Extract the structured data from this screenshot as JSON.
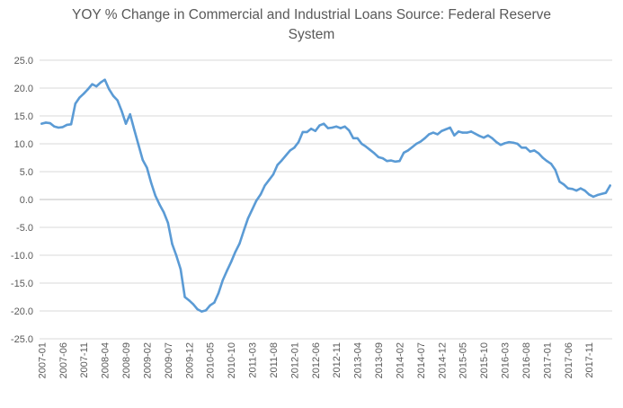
{
  "chart_data": {
    "type": "line",
    "title": "YOY % Change in Commercial and Industrial Loans Source: Federal Reserve System",
    "xlabel": "",
    "ylabel": "",
    "ylim": [
      -25,
      25
    ],
    "yticks": [
      25,
      20,
      15,
      10,
      5,
      0,
      -5,
      -10,
      -15,
      -20,
      -25
    ],
    "ytick_labels": [
      "25.0",
      "20.0",
      "15.0",
      "10.0",
      "5.0",
      "0.0",
      "-5.0",
      "-10.0",
      "-15.0",
      "-20.0",
      "-25.0"
    ],
    "xtick_labels": [
      "2007-01",
      "2007-06",
      "2007-11",
      "2008-04",
      "2008-09",
      "2009-02",
      "2009-07",
      "2009-12",
      "2010-05",
      "2010-10",
      "2011-03",
      "2011-08",
      "2012-01",
      "2012-06",
      "2012-11",
      "2013-04",
      "2013-09",
      "2014-02",
      "2014-07",
      "2014-12",
      "2015-05",
      "2015-10",
      "2016-03",
      "2016-08",
      "2017-01",
      "2017-06",
      "2017-11"
    ],
    "xtick_step_months": 5,
    "x_start": "2007-01",
    "grid": true,
    "line_color": "#5b9bd5",
    "series": [
      {
        "values": [
          13.6,
          13.8,
          13.7,
          13.1,
          12.9,
          13.0,
          13.4,
          13.5,
          17.2,
          18.3,
          19.0,
          19.8,
          20.7,
          20.3,
          21.0,
          21.5,
          19.8,
          18.6,
          17.8,
          15.9,
          13.6,
          15.3,
          12.5,
          9.8,
          7.1,
          5.7,
          3.0,
          0.7,
          -0.9,
          -2.3,
          -4.2,
          -8.0,
          -10.1,
          -12.5,
          -17.5,
          -18.1,
          -18.8,
          -19.7,
          -20.1,
          -19.9,
          -19.0,
          -18.5,
          -16.8,
          -14.5,
          -12.8,
          -11.2,
          -9.4,
          -7.9,
          -5.6,
          -3.4,
          -1.8,
          -0.2,
          0.9,
          2.5,
          3.5,
          4.5,
          6.2,
          7.0,
          7.9,
          8.8,
          9.3,
          10.3,
          12.1,
          12.1,
          12.7,
          12.3,
          13.3,
          13.6,
          12.8,
          12.9,
          13.1,
          12.8,
          13.1,
          12.4,
          11.0,
          11.0,
          10.0,
          9.5,
          8.9,
          8.3,
          7.6,
          7.4,
          6.9,
          7.0,
          6.8,
          6.9,
          8.4,
          8.8,
          9.4,
          10.0,
          10.4,
          11.0,
          11.7,
          12.0,
          11.7,
          12.3,
          12.6,
          12.9,
          11.5,
          12.2,
          12.0,
          12.0,
          12.2,
          11.8,
          11.4,
          11.1,
          11.5,
          11.0,
          10.3,
          9.8,
          10.1,
          10.3,
          10.2,
          10.0,
          9.3,
          9.3,
          8.6,
          8.8,
          8.3,
          7.5,
          6.9,
          6.4,
          5.3,
          3.2,
          2.7,
          2.0,
          1.9,
          1.6,
          2.0,
          1.6,
          0.9,
          0.5,
          0.8,
          1.0,
          1.2,
          2.5
        ]
      }
    ]
  }
}
